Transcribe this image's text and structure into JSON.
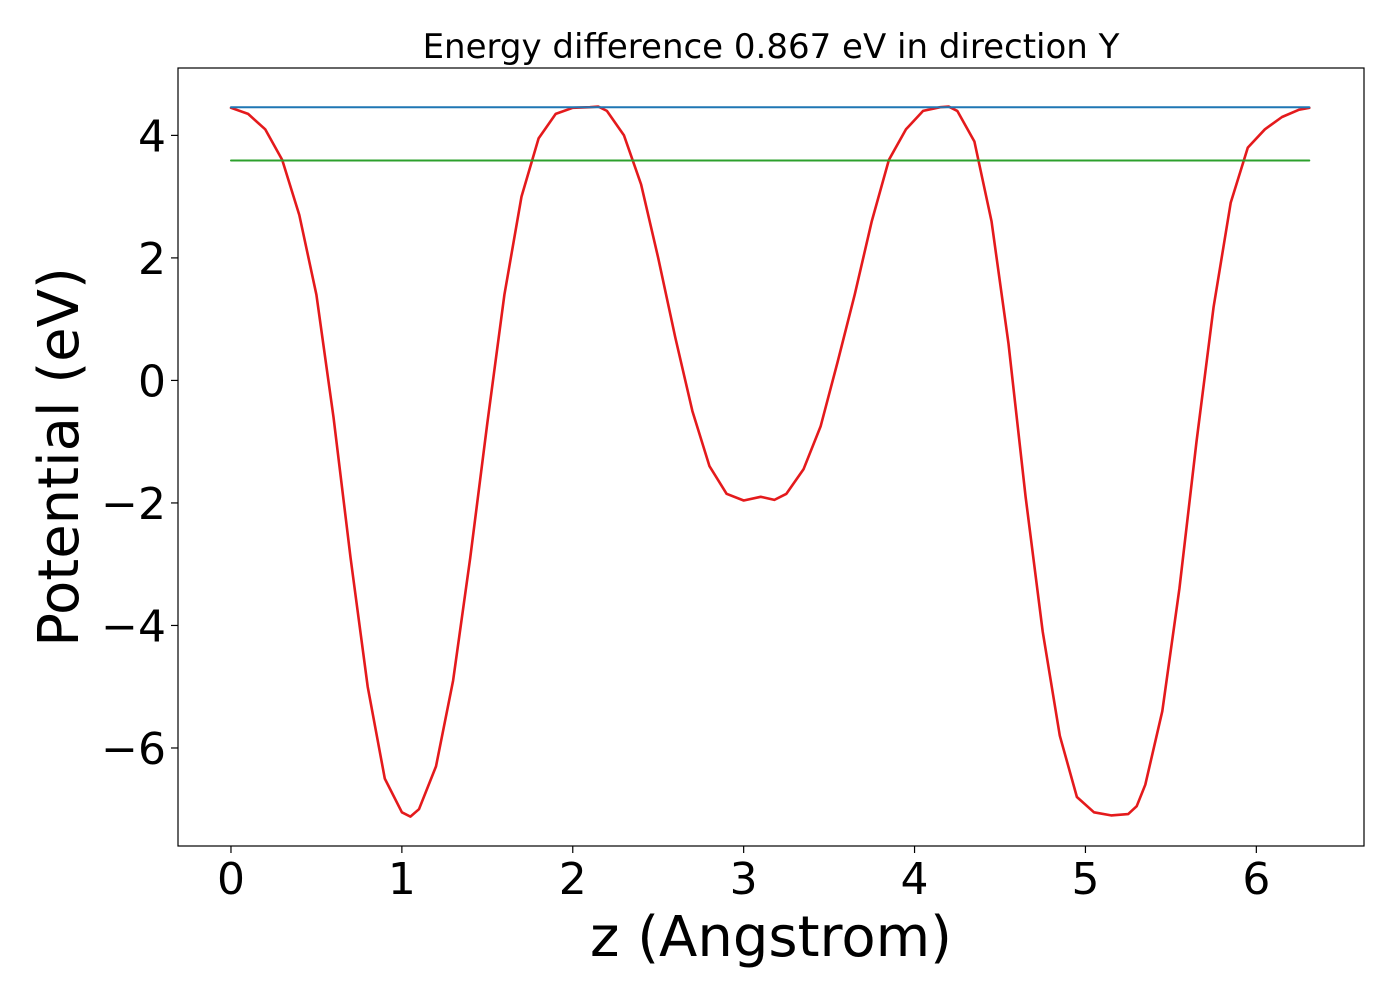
{
  "chart_data": {
    "type": "line",
    "title": "Energy difference 0.867 eV in direction Y",
    "xlabel": "z (Angstrom)",
    "ylabel": "Potential (eV)",
    "xlim": [
      -0.31,
      6.63
    ],
    "ylim": [
      -7.6,
      5.1
    ],
    "xticks": [
      0,
      1,
      2,
      3,
      4,
      5,
      6
    ],
    "xtick_labels": [
      "0",
      "1",
      "2",
      "3",
      "4",
      "5",
      "6"
    ],
    "yticks": [
      -6,
      -4,
      -2,
      0,
      2,
      4
    ],
    "ytick_labels": [
      "−6",
      "−4",
      "−2",
      "0",
      "2",
      "4"
    ],
    "grid": false,
    "series": [
      {
        "color": "#e41a1c",
        "x": [
          0.0,
          0.1,
          0.2,
          0.3,
          0.4,
          0.5,
          0.6,
          0.7,
          0.8,
          0.9,
          1.0,
          1.05,
          1.1,
          1.2,
          1.3,
          1.4,
          1.5,
          1.6,
          1.7,
          1.8,
          1.9,
          2.0,
          2.1,
          2.15,
          2.2,
          2.3,
          2.4,
          2.5,
          2.6,
          2.7,
          2.8,
          2.9,
          3.0,
          3.1,
          3.18,
          3.25,
          3.35,
          3.45,
          3.55,
          3.65,
          3.75,
          3.85,
          3.95,
          4.05,
          4.15,
          4.2,
          4.25,
          4.35,
          4.45,
          4.55,
          4.65,
          4.75,
          4.85,
          4.95,
          5.05,
          5.15,
          5.25,
          5.3,
          5.35,
          5.45,
          5.55,
          5.65,
          5.75,
          5.85,
          5.95,
          6.05,
          6.15,
          6.25,
          6.31
        ],
        "y": [
          4.45,
          4.35,
          4.1,
          3.6,
          2.7,
          1.4,
          -0.6,
          -2.9,
          -5.0,
          -6.5,
          -7.05,
          -7.12,
          -7.0,
          -6.3,
          -4.9,
          -2.9,
          -0.7,
          1.4,
          3.0,
          3.95,
          4.35,
          4.45,
          4.46,
          4.47,
          4.4,
          4.0,
          3.2,
          2.0,
          0.7,
          -0.5,
          -1.4,
          -1.85,
          -1.96,
          -1.9,
          -1.95,
          -1.85,
          -1.45,
          -0.75,
          0.3,
          1.4,
          2.6,
          3.6,
          4.1,
          4.4,
          4.46,
          4.47,
          4.4,
          3.9,
          2.6,
          0.6,
          -1.9,
          -4.1,
          -5.8,
          -6.8,
          -7.05,
          -7.1,
          -7.08,
          -6.95,
          -6.6,
          -5.4,
          -3.4,
          -1.0,
          1.2,
          2.9,
          3.8,
          4.1,
          4.3,
          4.42,
          4.45
        ]
      },
      {
        "color": "#1f77b4",
        "x": [
          0.0,
          6.31
        ],
        "y": [
          4.46,
          4.46
        ]
      },
      {
        "color": "#2ca02c",
        "x": [
          0.0,
          6.31
        ],
        "y": [
          3.59,
          3.59
        ]
      }
    ]
  }
}
